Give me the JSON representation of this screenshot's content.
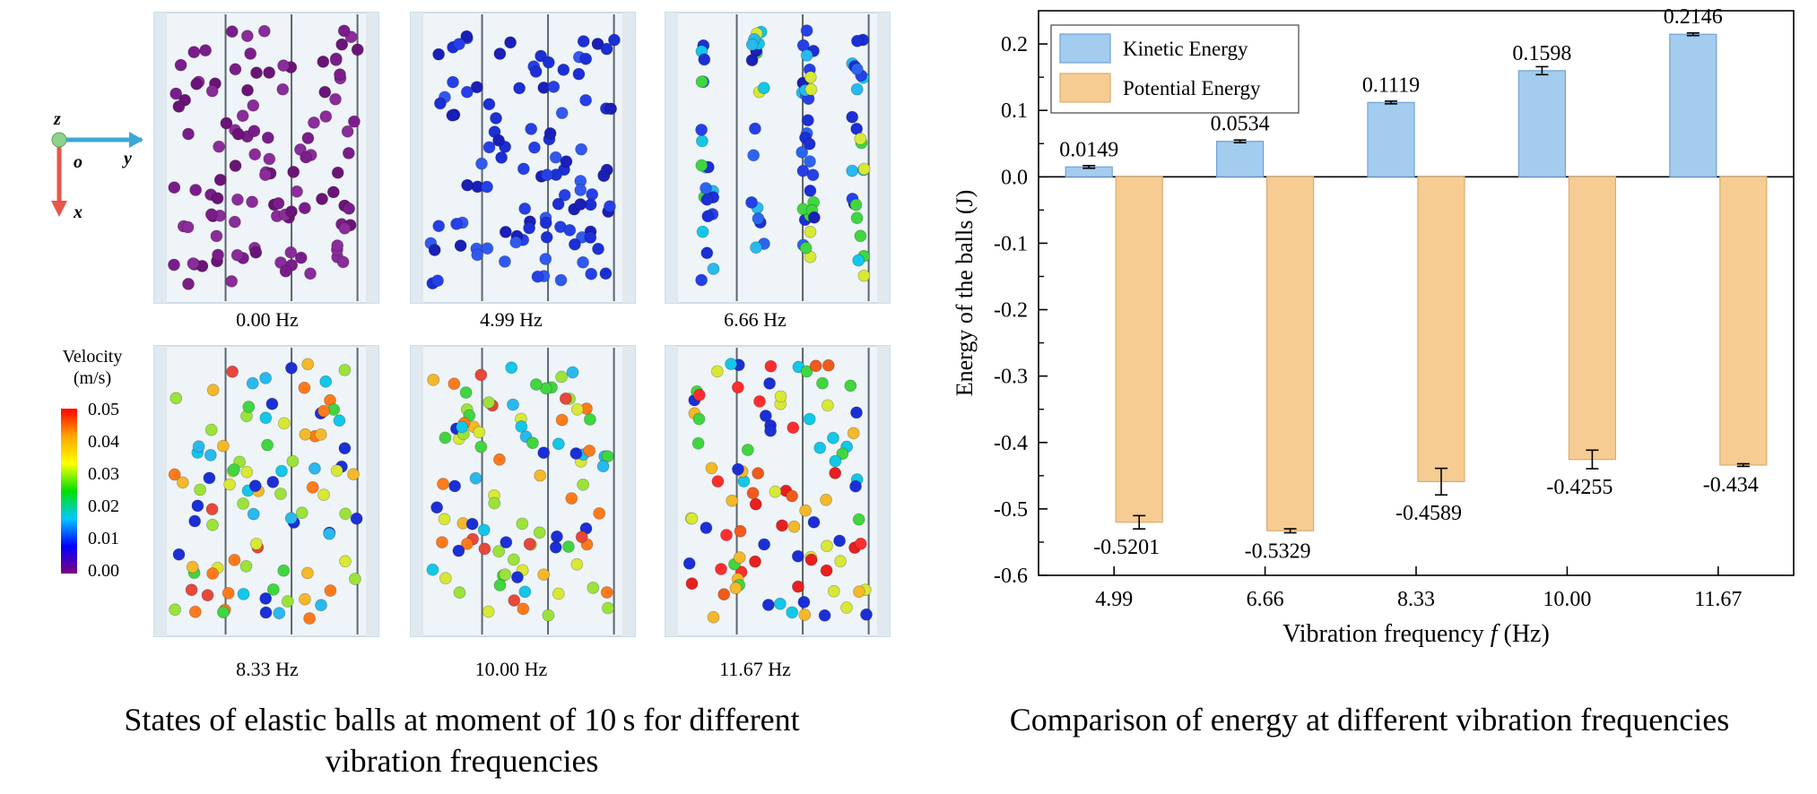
{
  "left_panel": {
    "frequency_labels": [
      "0.00 Hz",
      "4.99 Hz",
      "6.66 Hz",
      "8.33 Hz",
      "10.00 Hz",
      "11.67 Hz"
    ],
    "caption_line1": "States of elastic balls at moment of 10 s  for different",
    "caption_line2": "vibration frequencies",
    "axes": {
      "z": "z",
      "o": "o",
      "y": "y",
      "x": "x"
    },
    "axes_colors": {
      "y_axis": "#3ba7d6",
      "x_axis": "#e8564a",
      "z_dot": "#8fd18f"
    },
    "velocity_legend": {
      "title_line1": "Velocity",
      "title_line2": "(m/s)",
      "ticks": [
        "0.05",
        "0.04",
        "0.03",
        "0.02",
        "0.01",
        "0.00"
      ],
      "colors": [
        "#ff0000",
        "#ffa500",
        "#ffff00",
        "#00e000",
        "#00c8ff",
        "#0000ff",
        "#800080"
      ]
    }
  },
  "right_panel": {
    "caption": "Comparison of energy at different vibration frequencies"
  },
  "chart_data": {
    "type": "bar",
    "categories": [
      "4.99",
      "6.66",
      "8.33",
      "10.00",
      "11.67"
    ],
    "series": [
      {
        "name": "Kinetic Energy",
        "values": [
          0.0149,
          0.0534,
          0.1119,
          0.1598,
          0.2146
        ],
        "errors": [
          0.002,
          0.002,
          0.002,
          0.006,
          0.002
        ],
        "color": "#a3ccee",
        "edge": "#6fa2d6"
      },
      {
        "name": "Potential Energy",
        "values": [
          -0.5201,
          -0.5329,
          -0.4589,
          -0.4255,
          -0.434
        ],
        "errors": [
          0.01,
          0.003,
          0.02,
          0.014,
          0.002
        ],
        "color": "#f6cc92",
        "edge": "#d9ac6e"
      }
    ],
    "data_labels": {
      "kinetic": [
        "0.0149",
        "0.0534",
        "0.1119",
        "0.1598",
        "0.2146"
      ],
      "potential": [
        "-0.5201",
        "-0.5329",
        "-0.4589",
        "-0.4255",
        "-0.434"
      ]
    },
    "ylabel": "Energy of the balls (J)",
    "xlabel_prefix": "Vibration frequency ",
    "xlabel_var": "f",
    "xlabel_suffix": " (Hz)",
    "ylim": [
      -0.6,
      0.25
    ],
    "yticks": [
      0.2,
      0.1,
      0.0,
      -0.1,
      -0.2,
      -0.3,
      -0.4,
      -0.5,
      -0.6
    ],
    "ytick_labels": [
      "0.2",
      "0.1",
      "0.0",
      "-0.1",
      "-0.2",
      "-0.3",
      "-0.4",
      "-0.5",
      "-0.6"
    ],
    "legend_position": "top-left",
    "grid": false
  }
}
